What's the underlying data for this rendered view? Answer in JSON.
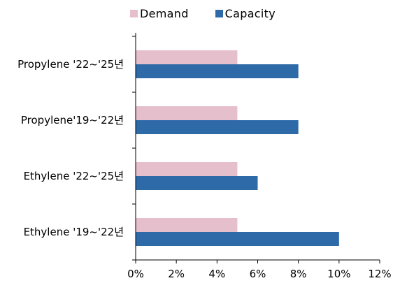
{
  "chart_data": {
    "type": "bar",
    "orientation": "horizontal",
    "categories": [
      "Propylene '22~'25년",
      "Propylene'19~'22년",
      "Ethylene '22~'25년",
      "Ethylene '19~'22년"
    ],
    "series": [
      {
        "name": "Demand",
        "values": [
          5,
          5,
          5,
          5
        ],
        "color": "#e6bfcd"
      },
      {
        "name": "Capacity",
        "values": [
          8,
          8,
          6,
          10
        ],
        "color": "#2e6aa8"
      }
    ],
    "xlim": [
      0,
      12
    ],
    "xticks": [
      0,
      2,
      4,
      6,
      8,
      10,
      12
    ],
    "tick_suffix": "%",
    "legend_position": "top",
    "grid": false
  },
  "legend": [
    {
      "label": "Demand",
      "color": "#e6bfcd"
    },
    {
      "label": "Capacity",
      "color": "#2e6aa8"
    }
  ]
}
